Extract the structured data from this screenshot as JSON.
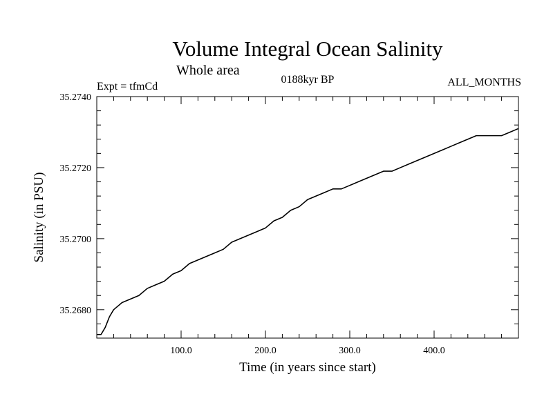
{
  "header": {
    "title": "Volume Integral Ocean Salinity",
    "subtitle": "Whole area",
    "experiment": "Expt = tfmCd",
    "period": "0188kyr BP",
    "months": "ALL_MONTHS"
  },
  "chart_data": {
    "type": "line",
    "title": "Volume Integral Ocean Salinity",
    "subtitle": "Whole area",
    "xlabel": "Time (in years since start)",
    "ylabel": "Salinity (in PSU)",
    "xlim": [
      0,
      500
    ],
    "ylim": [
      35.2672,
      35.274
    ],
    "x_ticks": [
      100,
      200,
      300,
      400
    ],
    "x_tick_labels": [
      "100.0",
      "200.0",
      "300.0",
      "400.0"
    ],
    "y_ticks": [
      35.268,
      35.27,
      35.272,
      35.274
    ],
    "y_tick_labels": [
      "35.2680",
      "35.2700",
      "35.2720",
      "35.2740"
    ],
    "grid": false,
    "series": [
      {
        "color": "#000000",
        "x": [
          0,
          5,
          10,
          15,
          20,
          25,
          30,
          40,
          50,
          60,
          70,
          80,
          90,
          100,
          110,
          120,
          130,
          140,
          150,
          160,
          170,
          180,
          190,
          200,
          210,
          220,
          230,
          240,
          250,
          260,
          270,
          280,
          290,
          300,
          310,
          320,
          330,
          340,
          350,
          360,
          370,
          380,
          390,
          400,
          410,
          420,
          430,
          440,
          450,
          460,
          470,
          480,
          490,
          500
        ],
        "y": [
          35.2673,
          35.2673,
          35.2675,
          35.2678,
          35.268,
          35.2681,
          35.2682,
          35.2683,
          35.2684,
          35.2686,
          35.2687,
          35.2688,
          35.269,
          35.2691,
          35.2693,
          35.2694,
          35.2695,
          35.2696,
          35.2697,
          35.2699,
          35.27,
          35.2701,
          35.2702,
          35.2703,
          35.2705,
          35.2706,
          35.2708,
          35.2709,
          35.2711,
          35.2712,
          35.2713,
          35.2714,
          35.2714,
          35.2715,
          35.2716,
          35.2717,
          35.2718,
          35.2719,
          35.2719,
          35.272,
          35.2721,
          35.2722,
          35.2723,
          35.2724,
          35.2725,
          35.2726,
          35.2727,
          35.2728,
          35.2729,
          35.2729,
          35.2729,
          35.2729,
          35.273,
          35.2731
        ]
      }
    ]
  }
}
